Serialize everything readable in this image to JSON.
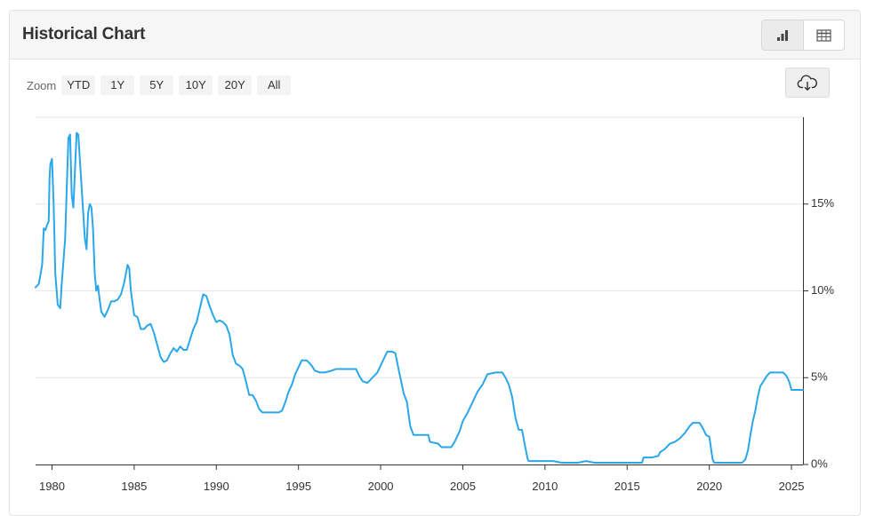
{
  "header": {
    "title": "Historical Chart"
  },
  "toolbar": {
    "zoom_label": "Zoom",
    "zoom_options": [
      "YTD",
      "1Y",
      "5Y",
      "10Y",
      "20Y",
      "All"
    ]
  },
  "icons": {
    "chart_view": "bar-chart-icon",
    "table_view": "table-icon",
    "download": "cloud-download-icon"
  },
  "colors": {
    "line": "#2aa7ea",
    "grid": "#e6e6e6",
    "axis": "#333333"
  },
  "chart_data": {
    "type": "line",
    "title": "",
    "xlabel": "",
    "ylabel": "",
    "xlim": [
      1979.0,
      2025.7
    ],
    "ylim": [
      0,
      20
    ],
    "x_ticks": [
      "1980",
      "1985",
      "1990",
      "1995",
      "2000",
      "2005",
      "2010",
      "2015",
      "2020",
      "2025"
    ],
    "y_ticks": [
      "0%",
      "5%",
      "10%",
      "15%"
    ],
    "grid": true,
    "legend": "none",
    "series": [
      {
        "points": [
          [
            1979.0,
            10.2
          ],
          [
            1979.2,
            10.4
          ],
          [
            1979.4,
            11.5
          ],
          [
            1979.5,
            13.6
          ],
          [
            1979.6,
            13.5
          ],
          [
            1979.7,
            13.8
          ],
          [
            1979.8,
            14.0
          ],
          [
            1979.85,
            16.5
          ],
          [
            1979.9,
            17.3
          ],
          [
            1980.0,
            17.6
          ],
          [
            1980.1,
            15.0
          ],
          [
            1980.2,
            11.0
          ],
          [
            1980.35,
            9.2
          ],
          [
            1980.5,
            9.0
          ],
          [
            1980.6,
            10.5
          ],
          [
            1980.8,
            13.0
          ],
          [
            1980.9,
            16.0
          ],
          [
            1981.0,
            18.8
          ],
          [
            1981.1,
            19.0
          ],
          [
            1981.2,
            15.5
          ],
          [
            1981.3,
            14.8
          ],
          [
            1981.4,
            17.0
          ],
          [
            1981.5,
            19.1
          ],
          [
            1981.6,
            19.0
          ],
          [
            1981.7,
            17.5
          ],
          [
            1981.8,
            16.0
          ],
          [
            1981.9,
            14.5
          ],
          [
            1982.0,
            13.0
          ],
          [
            1982.1,
            12.4
          ],
          [
            1982.2,
            14.5
          ],
          [
            1982.3,
            15.0
          ],
          [
            1982.4,
            14.8
          ],
          [
            1982.5,
            13.5
          ],
          [
            1982.6,
            11.0
          ],
          [
            1982.7,
            10.0
          ],
          [
            1982.8,
            10.3
          ],
          [
            1982.9,
            9.5
          ],
          [
            1983.0,
            8.8
          ],
          [
            1983.2,
            8.5
          ],
          [
            1983.4,
            8.9
          ],
          [
            1983.6,
            9.4
          ],
          [
            1983.8,
            9.4
          ],
          [
            1984.0,
            9.5
          ],
          [
            1984.2,
            9.8
          ],
          [
            1984.4,
            10.5
          ],
          [
            1984.6,
            11.5
          ],
          [
            1984.7,
            11.3
          ],
          [
            1984.8,
            10.0
          ],
          [
            1985.0,
            8.6
          ],
          [
            1985.2,
            8.5
          ],
          [
            1985.4,
            7.8
          ],
          [
            1985.6,
            7.8
          ],
          [
            1985.8,
            8.0
          ],
          [
            1986.0,
            8.1
          ],
          [
            1986.2,
            7.6
          ],
          [
            1986.4,
            6.9
          ],
          [
            1986.6,
            6.2
          ],
          [
            1986.8,
            5.9
          ],
          [
            1987.0,
            6.0
          ],
          [
            1987.2,
            6.4
          ],
          [
            1987.4,
            6.7
          ],
          [
            1987.6,
            6.5
          ],
          [
            1987.8,
            6.8
          ],
          [
            1988.0,
            6.6
          ],
          [
            1988.2,
            6.6
          ],
          [
            1988.4,
            7.2
          ],
          [
            1988.6,
            7.8
          ],
          [
            1988.8,
            8.2
          ],
          [
            1989.0,
            9.0
          ],
          [
            1989.2,
            9.8
          ],
          [
            1989.4,
            9.7
          ],
          [
            1989.6,
            9.1
          ],
          [
            1989.8,
            8.6
          ],
          [
            1990.0,
            8.2
          ],
          [
            1990.2,
            8.3
          ],
          [
            1990.4,
            8.2
          ],
          [
            1990.6,
            8.0
          ],
          [
            1990.8,
            7.5
          ],
          [
            1991.0,
            6.3
          ],
          [
            1991.2,
            5.8
          ],
          [
            1991.4,
            5.7
          ],
          [
            1991.6,
            5.5
          ],
          [
            1991.8,
            4.8
          ],
          [
            1992.0,
            4.0
          ],
          [
            1992.2,
            4.0
          ],
          [
            1992.4,
            3.7
          ],
          [
            1992.6,
            3.2
          ],
          [
            1992.8,
            3.0
          ],
          [
            1993.0,
            3.0
          ],
          [
            1993.4,
            3.0
          ],
          [
            1993.8,
            3.0
          ],
          [
            1994.0,
            3.1
          ],
          [
            1994.2,
            3.6
          ],
          [
            1994.4,
            4.2
          ],
          [
            1994.6,
            4.6
          ],
          [
            1994.8,
            5.2
          ],
          [
            1995.0,
            5.6
          ],
          [
            1995.2,
            6.0
          ],
          [
            1995.5,
            6.0
          ],
          [
            1995.8,
            5.7
          ],
          [
            1996.0,
            5.4
          ],
          [
            1996.3,
            5.3
          ],
          [
            1996.6,
            5.3
          ],
          [
            1997.0,
            5.4
          ],
          [
            1997.3,
            5.5
          ],
          [
            1997.6,
            5.5
          ],
          [
            1998.0,
            5.5
          ],
          [
            1998.5,
            5.5
          ],
          [
            1998.7,
            5.1
          ],
          [
            1998.9,
            4.8
          ],
          [
            1999.2,
            4.7
          ],
          [
            1999.5,
            5.0
          ],
          [
            1999.8,
            5.3
          ],
          [
            2000.0,
            5.7
          ],
          [
            2000.2,
            6.1
          ],
          [
            2000.4,
            6.5
          ],
          [
            2000.7,
            6.5
          ],
          [
            2000.9,
            6.4
          ],
          [
            2001.0,
            5.9
          ],
          [
            2001.2,
            5.0
          ],
          [
            2001.4,
            4.1
          ],
          [
            2001.6,
            3.6
          ],
          [
            2001.8,
            2.2
          ],
          [
            2002.0,
            1.7
          ],
          [
            2002.5,
            1.7
          ],
          [
            2002.9,
            1.7
          ],
          [
            2003.0,
            1.3
          ],
          [
            2003.5,
            1.2
          ],
          [
            2003.7,
            1.0
          ],
          [
            2004.0,
            1.0
          ],
          [
            2004.3,
            1.0
          ],
          [
            2004.5,
            1.3
          ],
          [
            2004.8,
            1.9
          ],
          [
            2005.0,
            2.5
          ],
          [
            2005.3,
            3.0
          ],
          [
            2005.6,
            3.6
          ],
          [
            2005.9,
            4.2
          ],
          [
            2006.2,
            4.6
          ],
          [
            2006.5,
            5.2
          ],
          [
            2007.0,
            5.3
          ],
          [
            2007.4,
            5.3
          ],
          [
            2007.6,
            5.0
          ],
          [
            2007.8,
            4.6
          ],
          [
            2008.0,
            3.9
          ],
          [
            2008.2,
            2.7
          ],
          [
            2008.4,
            2.0
          ],
          [
            2008.6,
            2.0
          ],
          [
            2008.8,
            1.0
          ],
          [
            2008.95,
            0.3
          ],
          [
            2009.0,
            0.2
          ],
          [
            2009.5,
            0.2
          ],
          [
            2010.0,
            0.2
          ],
          [
            2010.5,
            0.2
          ],
          [
            2011.0,
            0.1
          ],
          [
            2011.5,
            0.1
          ],
          [
            2012.0,
            0.1
          ],
          [
            2012.5,
            0.2
          ],
          [
            2013.0,
            0.1
          ],
          [
            2014.0,
            0.1
          ],
          [
            2015.0,
            0.1
          ],
          [
            2015.9,
            0.1
          ],
          [
            2016.0,
            0.4
          ],
          [
            2016.5,
            0.4
          ],
          [
            2016.9,
            0.5
          ],
          [
            2017.0,
            0.7
          ],
          [
            2017.3,
            0.9
          ],
          [
            2017.6,
            1.2
          ],
          [
            2017.9,
            1.3
          ],
          [
            2018.2,
            1.5
          ],
          [
            2018.5,
            1.8
          ],
          [
            2018.8,
            2.2
          ],
          [
            2019.0,
            2.4
          ],
          [
            2019.4,
            2.4
          ],
          [
            2019.6,
            2.1
          ],
          [
            2019.8,
            1.7
          ],
          [
            2020.0,
            1.6
          ],
          [
            2020.2,
            0.3
          ],
          [
            2020.3,
            0.1
          ],
          [
            2021.0,
            0.1
          ],
          [
            2022.0,
            0.1
          ],
          [
            2022.2,
            0.3
          ],
          [
            2022.35,
            0.8
          ],
          [
            2022.5,
            1.7
          ],
          [
            2022.65,
            2.5
          ],
          [
            2022.8,
            3.1
          ],
          [
            2022.95,
            3.9
          ],
          [
            2023.1,
            4.5
          ],
          [
            2023.3,
            4.8
          ],
          [
            2023.5,
            5.1
          ],
          [
            2023.7,
            5.3
          ],
          [
            2024.0,
            5.3
          ],
          [
            2024.5,
            5.3
          ],
          [
            2024.7,
            5.1
          ],
          [
            2024.85,
            4.8
          ],
          [
            2025.0,
            4.3
          ],
          [
            2025.3,
            4.3
          ],
          [
            2025.7,
            4.3
          ]
        ]
      }
    ]
  }
}
